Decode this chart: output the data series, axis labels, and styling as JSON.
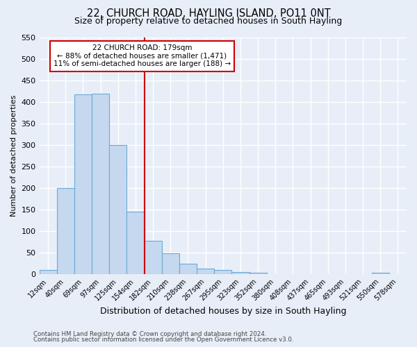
{
  "title": "22, CHURCH ROAD, HAYLING ISLAND, PO11 0NT",
  "subtitle": "Size of property relative to detached houses in South Hayling",
  "xlabel": "Distribution of detached houses by size in South Hayling",
  "ylabel": "Number of detached properties",
  "bar_labels": [
    "12sqm",
    "40sqm",
    "69sqm",
    "97sqm",
    "125sqm",
    "154sqm",
    "182sqm",
    "210sqm",
    "238sqm",
    "267sqm",
    "295sqm",
    "323sqm",
    "352sqm",
    "380sqm",
    "408sqm",
    "437sqm",
    "465sqm",
    "493sqm",
    "521sqm",
    "550sqm",
    "578sqm"
  ],
  "bar_heights": [
    10,
    200,
    418,
    420,
    300,
    145,
    78,
    48,
    25,
    13,
    10,
    5,
    3,
    0,
    0,
    0,
    0,
    0,
    0,
    3,
    0
  ],
  "bar_color": "#c5d8ef",
  "bar_edge_color": "#6aaad4",
  "ylim": [
    0,
    550
  ],
  "yticks": [
    0,
    50,
    100,
    150,
    200,
    250,
    300,
    350,
    400,
    450,
    500,
    550
  ],
  "vline_color": "#cc0000",
  "annotation_title": "22 CHURCH ROAD: 179sqm",
  "annotation_line1": "← 88% of detached houses are smaller (1,471)",
  "annotation_line2": "11% of semi-detached houses are larger (188) →",
  "footer_line1": "Contains HM Land Registry data © Crown copyright and database right 2024.",
  "footer_line2": "Contains public sector information licensed under the Open Government Licence v3.0.",
  "bg_color": "#e8eef8",
  "grid_color": "#ffffff",
  "title_fontsize": 10.5,
  "subtitle_fontsize": 9,
  "ylabel_fontsize": 8,
  "xlabel_fontsize": 9
}
